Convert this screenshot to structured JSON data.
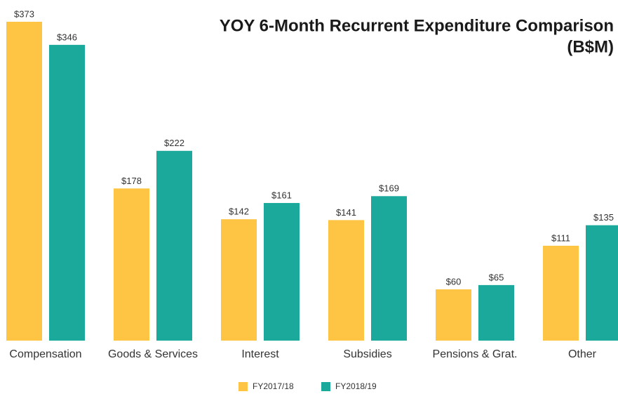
{
  "chart_data": {
    "type": "bar",
    "title": "YOY 6-Month Recurrent Expenditure Comparison",
    "subtitle": "(B$M)",
    "categories": [
      "Compensation",
      "Goods & Services",
      "Interest",
      "Subsidies",
      "Pensions & Grat.",
      "Other"
    ],
    "series": [
      {
        "name": "FY2017/18",
        "color": "#fdc543",
        "values": [
          373,
          178,
          142,
          141,
          60,
          111
        ],
        "value_labels": [
          "$373",
          "$178",
          "$142",
          "$141",
          "$60",
          "$111"
        ]
      },
      {
        "name": "FY2018/19",
        "color": "#1aa99a",
        "values": [
          346,
          222,
          161,
          169,
          65,
          135
        ],
        "value_labels": [
          "$346",
          "$222",
          "$161",
          "$169",
          "$65",
          "$135"
        ]
      }
    ],
    "legend": "bottom"
  }
}
